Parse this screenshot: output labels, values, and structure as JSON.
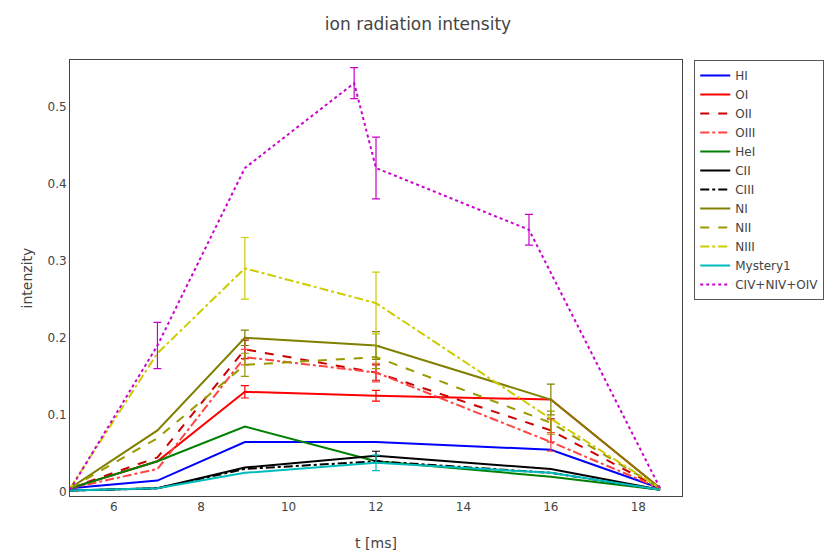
{
  "chart_data": {
    "type": "line",
    "title": "ion radiation intensity",
    "xlabel": "t [ms]",
    "ylabel": "intenzity",
    "xlim": [
      5.0,
      19.0
    ],
    "ylim": [
      -0.005,
      0.56
    ],
    "xticks": [
      6,
      8,
      10,
      12,
      14,
      16,
      18
    ],
    "yticks": [
      0,
      0.1,
      0.2,
      0.3,
      0.4,
      0.5
    ],
    "grid": false,
    "legend": "upper right",
    "series": [
      {
        "name": "HI",
        "color": "#0000ff",
        "line_style": "solid",
        "x": [
          5.0,
          7.0,
          9.0,
          12.0,
          16.0,
          18.5
        ],
        "values": [
          0.005,
          0.015,
          0.065,
          0.065,
          0.055,
          0.005
        ],
        "errors": [
          null,
          null,
          null,
          null,
          null,
          null
        ]
      },
      {
        "name": "OI",
        "color": "#ff0000",
        "line_style": "solid",
        "x": [
          5.0,
          7.0,
          9.0,
          12.0,
          16.0,
          18.5
        ],
        "values": [
          0.005,
          0.04,
          0.13,
          0.125,
          0.12,
          0.005
        ],
        "errors": [
          null,
          null,
          0.008,
          0.007,
          null,
          null
        ]
      },
      {
        "name": "OII",
        "color": "#cc0000",
        "line_style": "dashed",
        "x": [
          5.0,
          7.0,
          9.0,
          12.0,
          16.0,
          18.5
        ],
        "values": [
          0.005,
          0.045,
          0.185,
          0.155,
          0.08,
          0.005
        ],
        "errors": [
          null,
          null,
          0.012,
          0.01,
          0.015,
          null
        ]
      },
      {
        "name": "OIII",
        "color": "#ff4444",
        "line_style": "dashdot",
        "x": [
          5.0,
          7.0,
          9.0,
          12.0,
          16.0,
          18.5
        ],
        "values": [
          0.005,
          0.03,
          0.175,
          0.155,
          0.065,
          0.005
        ],
        "errors": [
          null,
          null,
          0.01,
          0.012,
          0.012,
          null
        ]
      },
      {
        "name": "HeI",
        "color": "#008000",
        "line_style": "solid",
        "x": [
          5.0,
          7.0,
          9.0,
          12.0,
          16.0,
          18.5
        ],
        "values": [
          0.005,
          0.04,
          0.085,
          0.04,
          0.02,
          0.003
        ],
        "errors": [
          null,
          null,
          null,
          null,
          null,
          null
        ]
      },
      {
        "name": "CII",
        "color": "#000000",
        "line_style": "solid",
        "x": [
          5.0,
          7.0,
          9.0,
          12.0,
          16.0,
          18.5
        ],
        "values": [
          0.002,
          0.005,
          0.032,
          0.047,
          0.03,
          0.003
        ],
        "errors": [
          null,
          null,
          null,
          0.006,
          null,
          null
        ]
      },
      {
        "name": "CIII",
        "color": "#000000",
        "line_style": "dashdot",
        "x": [
          5.0,
          7.0,
          9.0,
          12.0,
          16.0,
          18.5
        ],
        "values": [
          0.002,
          0.005,
          0.03,
          0.04,
          0.025,
          0.003
        ],
        "errors": [
          null,
          null,
          null,
          null,
          null,
          null
        ]
      },
      {
        "name": "NI",
        "color": "#808000",
        "line_style": "solid",
        "x": [
          5.0,
          7.0,
          9.0,
          12.0,
          16.0,
          18.5
        ],
        "values": [
          0.005,
          0.08,
          0.2,
          0.19,
          0.12,
          0.005
        ],
        "errors": [
          null,
          null,
          0.01,
          0.018,
          0.02,
          null
        ]
      },
      {
        "name": "NII",
        "color": "#999900",
        "line_style": "dashed",
        "x": [
          5.0,
          7.0,
          9.0,
          12.0,
          16.0,
          18.5
        ],
        "values": [
          0.005,
          0.07,
          0.165,
          0.175,
          0.09,
          0.005
        ],
        "errors": [
          null,
          null,
          0.015,
          0.015,
          0.015,
          null
        ]
      },
      {
        "name": "NIII",
        "color": "#cccc00",
        "line_style": "dashdot",
        "x": [
          5.0,
          7.0,
          9.0,
          12.0,
          16.0,
          18.5
        ],
        "values": [
          0.005,
          0.18,
          0.29,
          0.245,
          0.095,
          0.005
        ],
        "errors": [
          null,
          null,
          0.04,
          0.04,
          null,
          null
        ]
      },
      {
        "name": "Mystery1",
        "color": "#00bbbb",
        "line_style": "solid",
        "x": [
          5.0,
          7.0,
          9.0,
          12.0,
          16.0,
          18.5
        ],
        "values": [
          0.002,
          0.005,
          0.025,
          0.038,
          0.025,
          0.003
        ],
        "errors": [
          null,
          null,
          null,
          0.01,
          null,
          null
        ]
      },
      {
        "name": "CIV+NIV+OIV",
        "color": "#cc00cc",
        "line_style": "dotted",
        "x": [
          5.0,
          7.0,
          9.0,
          11.5,
          12.0,
          15.5,
          18.5
        ],
        "values": [
          0.003,
          0.19,
          0.42,
          0.53,
          0.42,
          0.34,
          0.005
        ],
        "errors": [
          null,
          0.03,
          null,
          0.02,
          0.04,
          0.02,
          null
        ]
      }
    ]
  }
}
